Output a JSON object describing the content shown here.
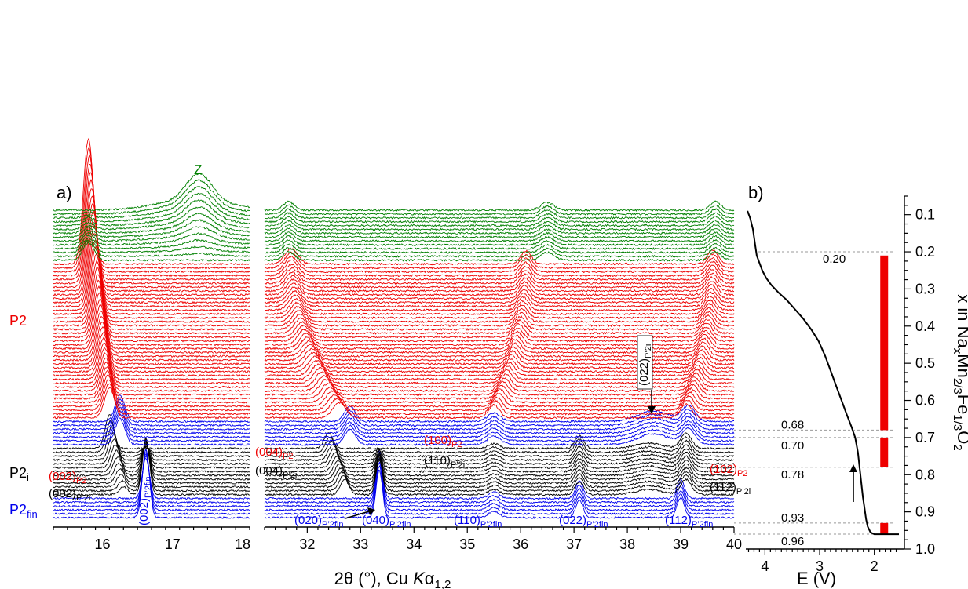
{
  "colors": {
    "red": "#ee0000",
    "blue": "#0000ee",
    "black": "#000000",
    "green": "#008000",
    "grid": "#999999"
  },
  "chart_data": [
    {
      "type": "line",
      "panel": "a)",
      "description_of_series": "stacked in-situ XRD patterns; scan order bottom to top",
      "xlabel": "2θ (°), Cu Kα1,2",
      "xlabel_parts": {
        "pre": "2θ (°), Cu ",
        "k": "K",
        "alpha": "α",
        "sub": "1,2"
      },
      "x_segments": [
        {
          "xlim": [
            15.3,
            18.1
          ],
          "ticks": [
            "16",
            "17",
            "18"
          ]
        },
        {
          "xlim": [
            31.2,
            40.0
          ],
          "ticks": [
            "32",
            "33",
            "34",
            "35",
            "36",
            "37",
            "38",
            "39",
            "40"
          ]
        }
      ],
      "phase_groups": [
        {
          "phase": "P2fin",
          "color": "blue",
          "scans": 6
        },
        {
          "phase": "P2i",
          "color": "black",
          "scans": 13
        },
        {
          "phase": "P2 to P2fin (transition)",
          "color": "blue",
          "scans": 7
        },
        {
          "phase": "P2",
          "color": "red",
          "scans": 41
        },
        {
          "phase": "Z",
          "color": "green",
          "scans": 14
        }
      ],
      "peaks": [
        {
          "phase": "P2",
          "pos_start": 15.8,
          "pos_end": 16.1,
          "height": 0.9
        },
        {
          "phase": "P2i",
          "pos": 16.1,
          "height": 0.7
        },
        {
          "phase": "P2fin",
          "pos": 16.62,
          "height": 1.7
        },
        {
          "phase": "Z",
          "pos": 17.38,
          "height": 0.6
        },
        {
          "phase": "P2",
          "pos_start": 31.7,
          "pos_end": 32.6,
          "height": 0.55
        },
        {
          "phase": "P2i",
          "pos": 32.7,
          "height": 0.4
        },
        {
          "phase": "P2fin",
          "pos": 33.35,
          "height": 1.2
        },
        {
          "phase": "P2",
          "pos_start": 36.1,
          "pos_end": 35.5,
          "height": 0.4
        },
        {
          "phase": "P2fin",
          "pos": 37.1,
          "height": 0.5
        },
        {
          "phase": "P2",
          "pos_start": 39.6,
          "pos_end": 39.1,
          "height": 0.45
        },
        {
          "phase": "P2fin",
          "pos": 39.0,
          "height": 0.5
        },
        {
          "phase": "Z",
          "pos": 36.5,
          "height": 0.3
        }
      ],
      "phase_labels": {
        "P2": "P2",
        "P2i_main": "P2",
        "P2i_sub": "i",
        "P2fin_main": "P2",
        "P2fin_sub": "fin",
        "Z": "Z"
      },
      "annotations": {
        "panel_a": "a)",
        "hkl_002_P2": {
          "main": "(002)",
          "sub": "P2"
        },
        "hkl_002_P2i": {
          "main": "(002)",
          "sub": "P’2i"
        },
        "hkl_002_P2fin": {
          "main": "(002)",
          "sub": "P’2fin"
        },
        "hkl_004_P2": {
          "main": "(004)",
          "sub": "P2"
        },
        "hkl_004_P2i": {
          "main": "(004)",
          "sub": "P’2i"
        },
        "hkl_100_P2": {
          "main": "(100)",
          "sub": "P2"
        },
        "hkl_110_P2i": {
          "main": "(110)",
          "sub": "P’2i"
        },
        "hkl_022_P2i": {
          "main": "(022)",
          "sub": "P’2i"
        },
        "hkl_102_P2": {
          "main": "(102)",
          "sub": "P2"
        },
        "hkl_112_P2i": {
          "main": "(112)",
          "sub": "P’2i"
        },
        "hkl_020_P2fin": {
          "main": "(020)",
          "sub": "P’2fin"
        },
        "hkl_040_P2fin": {
          "main": "(040)",
          "sub": "P’2fin"
        },
        "hkl_110_P2fin": {
          "main": "(110)",
          "sub": "P’2fin"
        },
        "hkl_022_P2fin": {
          "main": "(022)",
          "sub": "P’2fin"
        },
        "hkl_112_P2fin": {
          "main": "(112)",
          "sub": "P’2fin"
        }
      }
    },
    {
      "type": "line",
      "panel": "b)",
      "xlabel": "E (V)",
      "xlim": [
        4.35,
        1.45
      ],
      "x_reversed": true,
      "xticks": [
        "4",
        "3",
        "2"
      ],
      "ylabel_parts": {
        "a": "x in Na",
        "b": "x",
        "c": "Mn",
        "d": "2/3",
        "e": "Fe",
        "f": "1/3",
        "g": "O",
        "h": "2"
      },
      "ylim": [
        0.05,
        1.0
      ],
      "y_reversed": true,
      "yticks": [
        "0.1",
        "0.2",
        "0.3",
        "0.4",
        "0.5",
        "0.6",
        "0.7",
        "0.8",
        "0.9",
        "1.0"
      ],
      "series": [
        {
          "color": "black",
          "points": [
            [
              4.32,
              0.09
            ],
            [
              4.27,
              0.11
            ],
            [
              4.22,
              0.14
            ],
            [
              4.18,
              0.18
            ],
            [
              4.15,
              0.21
            ],
            [
              4.1,
              0.23
            ],
            [
              4.05,
              0.25
            ],
            [
              3.98,
              0.27
            ],
            [
              3.88,
              0.29
            ],
            [
              3.75,
              0.31
            ],
            [
              3.6,
              0.33
            ],
            [
              3.45,
              0.355
            ],
            [
              3.3,
              0.38
            ],
            [
              3.15,
              0.41
            ],
            [
              3.02,
              0.44
            ],
            [
              2.9,
              0.48
            ],
            [
              2.8,
              0.52
            ],
            [
              2.7,
              0.56
            ],
            [
              2.6,
              0.6
            ],
            [
              2.5,
              0.64
            ],
            [
              2.42,
              0.67
            ],
            [
              2.35,
              0.7
            ],
            [
              2.3,
              0.74
            ],
            [
              2.27,
              0.78
            ],
            [
              2.24,
              0.82
            ],
            [
              2.21,
              0.86
            ],
            [
              2.18,
              0.89
            ],
            [
              2.15,
              0.92
            ],
            [
              2.12,
              0.94
            ],
            [
              2.07,
              0.955
            ],
            [
              2.0,
              0.96
            ],
            [
              1.88,
              0.96
            ],
            [
              1.72,
              0.96
            ],
            [
              1.55,
              0.96
            ]
          ]
        }
      ],
      "hlines": [
        {
          "x": 0.2,
          "label": "0.20"
        },
        {
          "x": 0.68,
          "label": "0.68"
        },
        {
          "x": 0.7,
          "label": "0.70"
        },
        {
          "x": 0.78,
          "label": "0.78"
        },
        {
          "x": 0.93,
          "label": "0.93"
        },
        {
          "x": 0.96,
          "label": "0.96"
        }
      ],
      "red_bars": [
        [
          0.21,
          0.68
        ],
        [
          0.7,
          0.78
        ],
        [
          0.93,
          0.96
        ]
      ],
      "bar_E": 1.82,
      "panel_label": "b)"
    }
  ]
}
